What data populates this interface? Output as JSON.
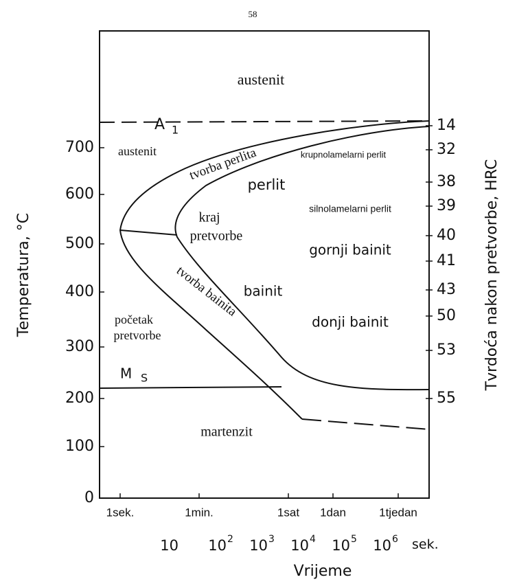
{
  "page_number": "58",
  "axes": {
    "y_title": "Temperatura, °C",
    "y2_title": "Tvrdoća nakon pretvorbe, HRC",
    "x_title": "Vrijeme",
    "y_ticks": [
      "700",
      "600",
      "500",
      "400",
      "300",
      "200",
      "100",
      "0"
    ],
    "hrc_ticks": [
      "14",
      "32",
      "38",
      "39",
      "40",
      "41",
      "43",
      "50",
      "53",
      "55"
    ],
    "time_labels": [
      "1sek.",
      "1min.",
      "1sat",
      "1dan",
      "1tjedan"
    ],
    "seconds_labels": [
      {
        "base": "10"
      },
      {
        "base": "10",
        "exp": "2"
      },
      {
        "base": "10",
        "exp": "3"
      },
      {
        "base": "10",
        "exp": "4"
      },
      {
        "base": "10",
        "exp": "5"
      },
      {
        "base": "10",
        "exp": "6"
      }
    ],
    "seconds_unit": "sek."
  },
  "regions": {
    "austenit_top": "austenit",
    "a1": "A",
    "a1_sub": "1",
    "austenit_left": "austenit",
    "tvorba_perlita": "tvorba perlita",
    "krupnolamelarni": "krupnolamelarni perlit",
    "perlit": "perlit",
    "silnolamelarni": "silnolamelarni perlit",
    "kraj": "kraj",
    "pretvorbe_kraj": "pretvorbe",
    "gornji": "gornji bainit",
    "tvorba_bainita": "tvorba bainita",
    "bainit": "bainit",
    "pocetak": "početak",
    "pretvorbe_pocetak": "pretvorbe",
    "donji": "donji bainit",
    "ms": "M",
    "ms_sub": "S",
    "martenzit": "martenzit"
  }
}
